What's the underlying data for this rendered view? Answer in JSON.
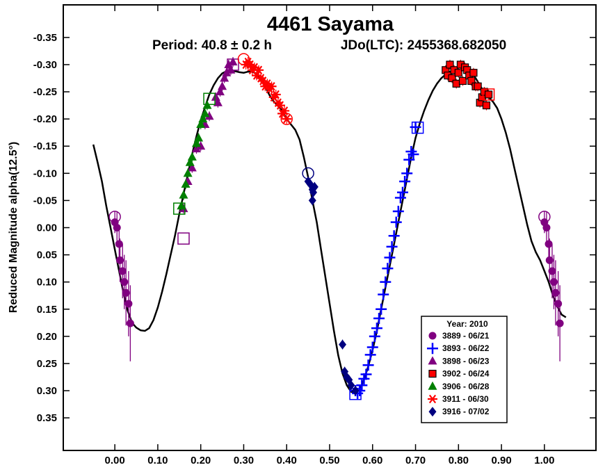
{
  "chart_data": {
    "type": "scatter",
    "title": "4461 Sayama",
    "period_text": "Period: 40.8 ± 0.2 h",
    "epoch_text": "JDo(LTC): 2455368.682050",
    "xlabel": "",
    "ylabel": "Reduced Magnitude alpha(12.5°)",
    "xlim": [
      -0.12,
      1.12
    ],
    "ylim": [
      -0.41,
      0.41
    ],
    "y_inverted": true,
    "x_ticks": [
      0.0,
      0.1,
      0.2,
      0.3,
      0.4,
      0.5,
      0.6,
      0.7,
      0.8,
      0.9,
      1.0
    ],
    "x_tick_labels": [
      "0.00",
      "0.10",
      "0.20",
      "0.30",
      "0.40",
      "0.50",
      "0.60",
      "0.70",
      "0.80",
      "0.90",
      "1.00"
    ],
    "y_ticks": [
      -0.35,
      -0.3,
      -0.25,
      -0.2,
      -0.15,
      -0.1,
      -0.05,
      0.0,
      0.05,
      0.1,
      0.15,
      0.2,
      0.25,
      0.3,
      0.35
    ],
    "y_tick_labels": [
      "-0.35",
      "-0.30",
      "-0.25",
      "-0.20",
      "-0.15",
      "-0.10",
      "-0.05",
      "0.00",
      "0.05",
      "0.10",
      "0.15",
      "0.20",
      "0.25",
      "0.30",
      "0.35"
    ],
    "legend": {
      "title": "Year: 2010",
      "placement": "bottom-right",
      "entries": [
        {
          "label": "3889 - 06/21",
          "marker": "circle",
          "color": "#800080"
        },
        {
          "label": "3893 - 06/22",
          "marker": "plus",
          "color": "#0000ff"
        },
        {
          "label": "3898 - 06/23",
          "marker": "triangle",
          "color": "#800080"
        },
        {
          "label": "3902 - 06/24",
          "marker": "square",
          "color": "#ff0000"
        },
        {
          "label": "3906 - 06/28",
          "marker": "triangle",
          "color": "#008000"
        },
        {
          "label": "3911 - 06/30",
          "marker": "star",
          "color": "#ff0000"
        },
        {
          "label": "3916 - 07/02",
          "marker": "diamond",
          "color": "#000080"
        }
      ]
    },
    "fit_curve": {
      "color": "#000000",
      "points": [
        [
          -0.05,
          -0.153
        ],
        [
          -0.04,
          -0.12
        ],
        [
          -0.03,
          -0.085
        ],
        [
          -0.02,
          -0.04
        ],
        [
          -0.01,
          0.0
        ],
        [
          0.0,
          0.04
        ],
        [
          0.01,
          0.08
        ],
        [
          0.02,
          0.12
        ],
        [
          0.03,
          0.153
        ],
        [
          0.04,
          0.175
        ],
        [
          0.05,
          0.184
        ],
        [
          0.06,
          0.189
        ],
        [
          0.07,
          0.19
        ],
        [
          0.08,
          0.185
        ],
        [
          0.09,
          0.17
        ],
        [
          0.1,
          0.147
        ],
        [
          0.11,
          0.118
        ],
        [
          0.12,
          0.085
        ],
        [
          0.13,
          0.05
        ],
        [
          0.14,
          0.015
        ],
        [
          0.15,
          -0.025
        ],
        [
          0.16,
          -0.062
        ],
        [
          0.17,
          -0.098
        ],
        [
          0.18,
          -0.135
        ],
        [
          0.19,
          -0.168
        ],
        [
          0.2,
          -0.198
        ],
        [
          0.21,
          -0.222
        ],
        [
          0.22,
          -0.245
        ],
        [
          0.23,
          -0.262
        ],
        [
          0.24,
          -0.275
        ],
        [
          0.25,
          -0.284
        ],
        [
          0.26,
          -0.288
        ],
        [
          0.27,
          -0.289
        ],
        [
          0.28,
          -0.288
        ],
        [
          0.29,
          -0.286
        ],
        [
          0.3,
          -0.285
        ],
        [
          0.31,
          -0.287
        ],
        [
          0.32,
          -0.287
        ],
        [
          0.33,
          -0.283
        ],
        [
          0.34,
          -0.273
        ],
        [
          0.35,
          -0.26
        ],
        [
          0.36,
          -0.244
        ],
        [
          0.37,
          -0.232
        ],
        [
          0.38,
          -0.224
        ],
        [
          0.39,
          -0.215
        ],
        [
          0.4,
          -0.2
        ],
        [
          0.41,
          -0.19
        ],
        [
          0.42,
          -0.18
        ],
        [
          0.43,
          -0.162
        ],
        [
          0.44,
          -0.13
        ],
        [
          0.45,
          -0.093
        ],
        [
          0.46,
          -0.05
        ],
        [
          0.47,
          -0.01
        ],
        [
          0.48,
          0.04
        ],
        [
          0.49,
          0.09
        ],
        [
          0.5,
          0.14
        ],
        [
          0.51,
          0.19
        ],
        [
          0.52,
          0.235
        ],
        [
          0.53,
          0.268
        ],
        [
          0.54,
          0.29
        ],
        [
          0.55,
          0.302
        ],
        [
          0.56,
          0.305
        ],
        [
          0.57,
          0.298
        ],
        [
          0.58,
          0.28
        ],
        [
          0.59,
          0.255
        ],
        [
          0.6,
          0.225
        ],
        [
          0.61,
          0.19
        ],
        [
          0.62,
          0.15
        ],
        [
          0.63,
          0.11
        ],
        [
          0.64,
          0.07
        ],
        [
          0.65,
          0.03
        ],
        [
          0.66,
          -0.01
        ],
        [
          0.67,
          -0.05
        ],
        [
          0.68,
          -0.09
        ],
        [
          0.69,
          -0.13
        ],
        [
          0.7,
          -0.165
        ],
        [
          0.71,
          -0.192
        ],
        [
          0.72,
          -0.215
        ],
        [
          0.73,
          -0.235
        ],
        [
          0.74,
          -0.252
        ],
        [
          0.75,
          -0.265
        ],
        [
          0.76,
          -0.275
        ],
        [
          0.77,
          -0.282
        ],
        [
          0.78,
          -0.287
        ],
        [
          0.79,
          -0.289
        ],
        [
          0.8,
          -0.29
        ],
        [
          0.81,
          -0.29
        ],
        [
          0.82,
          -0.289
        ],
        [
          0.83,
          -0.285
        ],
        [
          0.84,
          -0.275
        ],
        [
          0.85,
          -0.262
        ],
        [
          0.86,
          -0.248
        ],
        [
          0.87,
          -0.24
        ],
        [
          0.88,
          -0.232
        ],
        [
          0.89,
          -0.22
        ],
        [
          0.9,
          -0.2
        ],
        [
          0.91,
          -0.175
        ],
        [
          0.92,
          -0.145
        ],
        [
          0.93,
          -0.11
        ],
        [
          0.94,
          -0.075
        ],
        [
          0.95,
          -0.04
        ],
        [
          0.96,
          -0.005
        ],
        [
          0.97,
          0.025
        ],
        [
          0.98,
          0.045
        ],
        [
          0.99,
          0.06
        ],
        [
          1.0,
          0.08
        ],
        [
          1.01,
          0.1
        ],
        [
          1.02,
          0.125
        ],
        [
          1.03,
          0.145
        ],
        [
          1.04,
          0.16
        ],
        [
          1.05,
          0.165
        ]
      ]
    },
    "series": [
      {
        "name": "3889 - 06/21",
        "marker": "circle",
        "color": "#800080",
        "points": [
          [
            0.0,
            -0.01,
            0.02
          ],
          [
            0.005,
            0.0,
            0.03
          ],
          [
            0.01,
            0.03,
            0.03
          ],
          [
            0.012,
            0.06,
            0.04
          ],
          [
            0.018,
            0.08,
            0.05
          ],
          [
            0.022,
            0.1,
            0.05
          ],
          [
            0.026,
            0.12,
            0.06
          ],
          [
            0.032,
            0.14,
            0.06
          ],
          [
            0.036,
            0.176,
            0.07
          ],
          [
            1.0,
            -0.01,
            0.02
          ],
          [
            1.005,
            0.0,
            0.03
          ],
          [
            1.01,
            0.03,
            0.03
          ],
          [
            1.012,
            0.06,
            0.04
          ],
          [
            1.018,
            0.08,
            0.05
          ],
          [
            1.022,
            0.1,
            0.05
          ],
          [
            1.026,
            0.12,
            0.06
          ],
          [
            1.032,
            0.14,
            0.06
          ],
          [
            1.036,
            0.176,
            0.07
          ]
        ],
        "open_marker": [
          [
            0.0,
            -0.02
          ],
          [
            1.0,
            -0.02
          ]
        ]
      },
      {
        "name": "3893 - 06/22",
        "marker": "plus",
        "color": "#0000ff",
        "points": [
          [
            0.56,
            0.3
          ],
          [
            0.565,
            0.305
          ],
          [
            0.57,
            0.3
          ],
          [
            0.575,
            0.29
          ],
          [
            0.58,
            0.278
          ],
          [
            0.585,
            0.27
          ],
          [
            0.59,
            0.253
          ],
          [
            0.595,
            0.234
          ],
          [
            0.6,
            0.22
          ],
          [
            0.605,
            0.2
          ],
          [
            0.61,
            0.185
          ],
          [
            0.615,
            0.167
          ],
          [
            0.62,
            0.15
          ],
          [
            0.625,
            0.123
          ],
          [
            0.63,
            0.1
          ],
          [
            0.635,
            0.075
          ],
          [
            0.64,
            0.055
          ],
          [
            0.645,
            0.035
          ],
          [
            0.65,
            0.015
          ],
          [
            0.655,
            -0.01
          ],
          [
            0.66,
            -0.03
          ],
          [
            0.665,
            -0.055
          ],
          [
            0.67,
            -0.065
          ],
          [
            0.675,
            -0.085
          ],
          [
            0.68,
            -0.1
          ],
          [
            0.685,
            -0.125
          ],
          [
            0.69,
            -0.14
          ],
          [
            0.695,
            -0.135
          ],
          [
            0.7,
            -0.185
          ]
        ],
        "open_marker": [
          [
            0.56,
            0.306
          ],
          [
            0.705,
            -0.184
          ]
        ]
      },
      {
        "name": "3898 - 06/23",
        "marker": "triangle",
        "color": "#800080",
        "points": [
          [
            0.16,
            -0.035
          ],
          [
            0.17,
            -0.085
          ],
          [
            0.18,
            -0.11
          ],
          [
            0.19,
            -0.145
          ],
          [
            0.2,
            -0.15
          ],
          [
            0.21,
            -0.19
          ],
          [
            0.22,
            -0.205
          ],
          [
            0.235,
            -0.24
          ],
          [
            0.24,
            -0.23
          ],
          [
            0.245,
            -0.25
          ],
          [
            0.25,
            -0.26
          ],
          [
            0.255,
            -0.275
          ],
          [
            0.26,
            -0.285
          ],
          [
            0.265,
            -0.3
          ],
          [
            0.27,
            -0.29
          ],
          [
            0.275,
            -0.305
          ]
        ],
        "open_marker": [
          [
            0.16,
            0.02
          ],
          [
            0.275,
            -0.3
          ]
        ]
      },
      {
        "name": "3902 - 06/24",
        "marker": "square",
        "color": "#ff0000",
        "points": [
          [
            0.77,
            -0.29
          ],
          [
            0.775,
            -0.28
          ],
          [
            0.78,
            -0.3
          ],
          [
            0.785,
            -0.275
          ],
          [
            0.79,
            -0.29
          ],
          [
            0.795,
            -0.265
          ],
          [
            0.8,
            -0.285
          ],
          [
            0.805,
            -0.3
          ],
          [
            0.81,
            -0.27
          ],
          [
            0.815,
            -0.295
          ],
          [
            0.82,
            -0.29
          ],
          [
            0.825,
            -0.28
          ],
          [
            0.83,
            -0.27
          ],
          [
            0.835,
            -0.285
          ],
          [
            0.84,
            -0.26
          ],
          [
            0.845,
            -0.26
          ],
          [
            0.85,
            -0.23
          ],
          [
            0.855,
            -0.24
          ],
          [
            0.86,
            -0.25
          ],
          [
            0.865,
            -0.225
          ],
          [
            0.87,
            -0.245
          ]
        ],
        "open_marker": [
          [
            0.87,
            -0.245
          ]
        ]
      },
      {
        "name": "3906 - 06/28",
        "marker": "triangle",
        "color": "#008000",
        "points": [
          [
            0.155,
            -0.04
          ],
          [
            0.16,
            -0.06
          ],
          [
            0.165,
            -0.08
          ],
          [
            0.17,
            -0.1
          ],
          [
            0.175,
            -0.12
          ],
          [
            0.18,
            -0.13
          ],
          [
            0.19,
            -0.155
          ],
          [
            0.195,
            -0.165
          ],
          [
            0.2,
            -0.19
          ],
          [
            0.205,
            -0.2
          ],
          [
            0.21,
            -0.21
          ],
          [
            0.215,
            -0.225
          ]
        ],
        "open_marker": [
          [
            0.15,
            -0.035
          ],
          [
            0.22,
            -0.237
          ]
        ]
      },
      {
        "name": "3911 - 06/30",
        "marker": "star",
        "color": "#ff0000",
        "points": [
          [
            0.305,
            -0.3
          ],
          [
            0.31,
            -0.305
          ],
          [
            0.315,
            -0.3
          ],
          [
            0.32,
            -0.29
          ],
          [
            0.325,
            -0.295
          ],
          [
            0.33,
            -0.28
          ],
          [
            0.335,
            -0.29
          ],
          [
            0.34,
            -0.275
          ],
          [
            0.345,
            -0.27
          ],
          [
            0.35,
            -0.26
          ],
          [
            0.355,
            -0.265
          ],
          [
            0.36,
            -0.255
          ],
          [
            0.365,
            -0.26
          ],
          [
            0.37,
            -0.24
          ],
          [
            0.375,
            -0.245
          ],
          [
            0.38,
            -0.23
          ],
          [
            0.385,
            -0.225
          ],
          [
            0.39,
            -0.21
          ],
          [
            0.395,
            -0.215
          ],
          [
            0.4,
            -0.2
          ]
        ],
        "open_marker": [
          [
            0.3,
            -0.31
          ],
          [
            0.4,
            -0.2
          ]
        ]
      },
      {
        "name": "3916 - 07/02",
        "marker": "diamond",
        "color": "#000080",
        "points": [
          [
            0.45,
            -0.085
          ],
          [
            0.455,
            -0.08
          ],
          [
            0.46,
            -0.07
          ],
          [
            0.462,
            -0.065
          ],
          [
            0.465,
            -0.075
          ],
          [
            0.46,
            -0.05
          ],
          [
            0.53,
            0.215
          ],
          [
            0.535,
            0.265
          ],
          [
            0.54,
            0.275
          ],
          [
            0.545,
            0.28
          ],
          [
            0.55,
            0.29
          ],
          [
            0.56,
            0.3
          ]
        ],
        "open_marker": [
          [
            0.45,
            -0.1
          ]
        ]
      }
    ]
  }
}
